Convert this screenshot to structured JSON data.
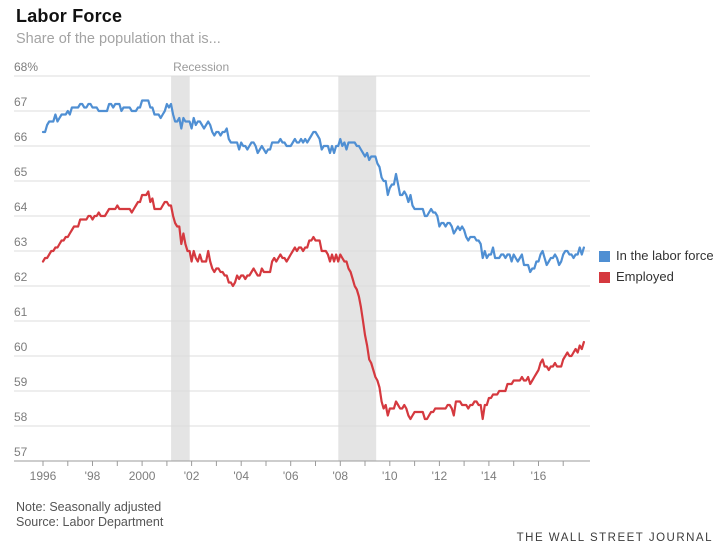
{
  "header": {
    "title": "Labor Force",
    "subtitle": "Share of the population that is..."
  },
  "footer": {
    "note": "Note: Seasonally adjusted",
    "source": "Source: Labor Department",
    "brand": "THE WALL STREET JOURNAL"
  },
  "colors": {
    "blue": "#4f8fd3",
    "red": "#d5393f",
    "recession_band": "#e4e4e4",
    "gridline": "#dcdcdc",
    "axis": "#9b9b9b",
    "tick_label": "#7d7d7d",
    "recession_label": "#9b9b9b"
  },
  "chart_data": {
    "type": "line",
    "title": "Labor Force",
    "subtitle": "Share of the population that is...",
    "unit": "%",
    "grid": true,
    "legend_position": "right",
    "xlim": [
      1996,
      2018
    ],
    "ylim": [
      57,
      68
    ],
    "x_start_year": 1996,
    "x_months_per_point": 1,
    "y_ticks": [
      57,
      58,
      59,
      60,
      61,
      62,
      63,
      64,
      65,
      66,
      67,
      68
    ],
    "y_top_tick_label": "68%",
    "x_minor_tick_years": [
      1996,
      1997,
      1998,
      1999,
      2000,
      2001,
      2002,
      2003,
      2004,
      2005,
      2006,
      2007,
      2008,
      2009,
      2010,
      2011,
      2012,
      2013,
      2014,
      2015,
      2016,
      2017
    ],
    "x_tick_labels": [
      {
        "year": 1996,
        "label": "1996"
      },
      {
        "year": 1998,
        "label": "'98"
      },
      {
        "year": 2000,
        "label": "2000"
      },
      {
        "year": 2002,
        "label": "'02"
      },
      {
        "year": 2004,
        "label": "'04"
      },
      {
        "year": 2006,
        "label": "'06"
      },
      {
        "year": 2008,
        "label": "'08"
      },
      {
        "year": 2010,
        "label": "'10"
      },
      {
        "year": 2012,
        "label": "'12"
      },
      {
        "year": 2014,
        "label": "'14"
      },
      {
        "year": 2016,
        "label": "'16"
      }
    ],
    "recession_label": "Recession",
    "recessions": [
      {
        "start": 2001.17,
        "end": 2001.92
      },
      {
        "start": 2007.92,
        "end": 2009.45
      }
    ],
    "series": [
      {
        "name": "In the labor force",
        "color": "#4f8fd3",
        "values": [
          66.4,
          66.4,
          66.6,
          66.7,
          66.7,
          66.7,
          66.9,
          66.7,
          66.8,
          66.9,
          66.9,
          66.9,
          67.0,
          66.9,
          67.1,
          67.1,
          67.1,
          67.1,
          67.2,
          67.2,
          67.1,
          67.1,
          67.2,
          67.2,
          67.1,
          67.1,
          67.1,
          67.0,
          67.0,
          67.0,
          67.0,
          67.0,
          67.2,
          67.2,
          67.1,
          67.2,
          67.2,
          67.2,
          67.0,
          67.1,
          67.1,
          67.1,
          67.1,
          67.0,
          67.0,
          67.0,
          67.1,
          67.1,
          67.3,
          67.3,
          67.3,
          67.3,
          67.1,
          67.1,
          66.9,
          66.9,
          66.9,
          66.8,
          66.9,
          67.0,
          67.2,
          67.1,
          67.2,
          66.9,
          66.7,
          66.7,
          66.8,
          66.5,
          66.8,
          66.7,
          66.7,
          66.7,
          66.5,
          66.8,
          66.6,
          66.7,
          66.7,
          66.6,
          66.5,
          66.6,
          66.7,
          66.6,
          66.4,
          66.3,
          66.4,
          66.4,
          66.3,
          66.4,
          66.4,
          66.5,
          66.2,
          66.1,
          66.1,
          66.1,
          66.1,
          65.9,
          66.1,
          66.0,
          66.0,
          65.9,
          66.0,
          66.1,
          66.1,
          66.0,
          65.8,
          65.9,
          66.0,
          65.9,
          65.8,
          65.9,
          65.9,
          66.1,
          66.1,
          66.1,
          66.1,
          66.2,
          66.1,
          66.1,
          66.0,
          66.0,
          66.0,
          66.1,
          66.2,
          66.1,
          66.1,
          66.2,
          66.1,
          66.2,
          66.1,
          66.2,
          66.3,
          66.4,
          66.4,
          66.3,
          66.2,
          65.9,
          66.0,
          66.0,
          66.0,
          65.8,
          66.0,
          65.8,
          66.0,
          66.0,
          66.2,
          66.0,
          66.1,
          65.9,
          66.1,
          66.1,
          66.1,
          66.1,
          66.0,
          66.0,
          65.9,
          65.8,
          65.7,
          65.8,
          65.6,
          65.7,
          65.7,
          65.7,
          65.5,
          65.4,
          65.1,
          65.0,
          65.0,
          64.6,
          64.8,
          64.9,
          64.9,
          65.2,
          64.9,
          64.6,
          64.6,
          64.7,
          64.6,
          64.4,
          64.6,
          64.3,
          64.2,
          64.2,
          64.2,
          64.2,
          64.2,
          64.0,
          64.0,
          64.1,
          64.2,
          64.1,
          64.1,
          64.0,
          63.7,
          63.8,
          63.8,
          63.7,
          63.8,
          63.8,
          63.7,
          63.5,
          63.6,
          63.7,
          63.6,
          63.7,
          63.6,
          63.4,
          63.3,
          63.4,
          63.4,
          63.4,
          63.3,
          63.3,
          63.2,
          62.8,
          63.0,
          62.8,
          62.9,
          62.9,
          63.1,
          62.8,
          62.8,
          62.8,
          62.9,
          62.9,
          62.8,
          62.9,
          62.9,
          62.7,
          62.9,
          62.8,
          62.7,
          62.8,
          62.9,
          62.6,
          62.6,
          62.6,
          62.4,
          62.5,
          62.5,
          62.7,
          62.7,
          62.9,
          63.0,
          62.8,
          62.6,
          62.7,
          62.8,
          62.8,
          62.9,
          62.8,
          62.6,
          62.7,
          62.9,
          63.0,
          63.0,
          62.9,
          62.9,
          62.8,
          62.9,
          62.9,
          63.1,
          62.9,
          63.1
        ]
      },
      {
        "name": "Employed",
        "color": "#d5393f",
        "values": [
          62.7,
          62.8,
          62.8,
          62.9,
          63.0,
          63.0,
          63.1,
          63.1,
          63.2,
          63.3,
          63.3,
          63.4,
          63.4,
          63.5,
          63.6,
          63.7,
          63.7,
          63.7,
          63.9,
          63.9,
          63.9,
          63.9,
          64.0,
          64.0,
          63.9,
          64.0,
          64.0,
          64.1,
          64.0,
          64.0,
          64.0,
          64.1,
          64.2,
          64.2,
          64.2,
          64.2,
          64.3,
          64.2,
          64.2,
          64.2,
          64.2,
          64.2,
          64.2,
          64.1,
          64.2,
          64.3,
          64.4,
          64.4,
          64.6,
          64.6,
          64.6,
          64.7,
          64.4,
          64.5,
          64.2,
          64.2,
          64.2,
          64.2,
          64.3,
          64.4,
          64.4,
          64.3,
          64.3,
          64.0,
          63.8,
          63.7,
          63.7,
          63.2,
          63.5,
          63.2,
          63.0,
          63.0,
          62.7,
          63.0,
          62.8,
          62.7,
          62.9,
          62.7,
          62.7,
          62.7,
          63.0,
          62.7,
          62.5,
          62.4,
          62.5,
          62.5,
          62.4,
          62.4,
          62.3,
          62.3,
          62.1,
          62.1,
          62.0,
          62.1,
          62.3,
          62.2,
          62.3,
          62.3,
          62.2,
          62.3,
          62.3,
          62.4,
          62.5,
          62.4,
          62.3,
          62.3,
          62.5,
          62.4,
          62.4,
          62.4,
          62.4,
          62.7,
          62.8,
          62.7,
          62.8,
          62.9,
          62.8,
          62.8,
          62.7,
          62.8,
          62.9,
          63.0,
          63.1,
          63.0,
          63.1,
          63.1,
          63.0,
          63.1,
          63.1,
          63.3,
          63.3,
          63.4,
          63.3,
          63.3,
          63.3,
          63.0,
          63.0,
          63.0,
          62.9,
          62.7,
          62.9,
          62.7,
          62.9,
          62.7,
          62.9,
          62.8,
          62.7,
          62.7,
          62.5,
          62.4,
          62.2,
          62.0,
          61.9,
          61.7,
          61.4,
          61.0,
          60.6,
          60.3,
          59.9,
          59.8,
          59.6,
          59.4,
          59.3,
          59.1,
          58.7,
          58.5,
          58.6,
          58.3,
          58.5,
          58.5,
          58.5,
          58.7,
          58.6,
          58.5,
          58.5,
          58.6,
          58.5,
          58.3,
          58.2,
          58.3,
          58.4,
          58.4,
          58.4,
          58.4,
          58.4,
          58.2,
          58.2,
          58.3,
          58.4,
          58.4,
          58.5,
          58.5,
          58.5,
          58.5,
          58.5,
          58.5,
          58.6,
          58.6,
          58.5,
          58.3,
          58.7,
          58.7,
          58.7,
          58.6,
          58.6,
          58.6,
          58.5,
          58.6,
          58.6,
          58.7,
          58.7,
          58.6,
          58.6,
          58.2,
          58.6,
          58.6,
          58.8,
          58.8,
          58.9,
          58.9,
          58.9,
          59.0,
          59.0,
          59.0,
          59.0,
          59.2,
          59.2,
          59.2,
          59.3,
          59.3,
          59.3,
          59.3,
          59.4,
          59.3,
          59.3,
          59.4,
          59.2,
          59.3,
          59.4,
          59.5,
          59.6,
          59.8,
          59.9,
          59.7,
          59.7,
          59.6,
          59.7,
          59.7,
          59.8,
          59.7,
          59.7,
          59.7,
          59.9,
          60.0,
          60.1,
          60.0,
          60.0,
          60.1,
          60.2,
          60.1,
          60.3,
          60.2,
          60.4
        ]
      }
    ]
  }
}
